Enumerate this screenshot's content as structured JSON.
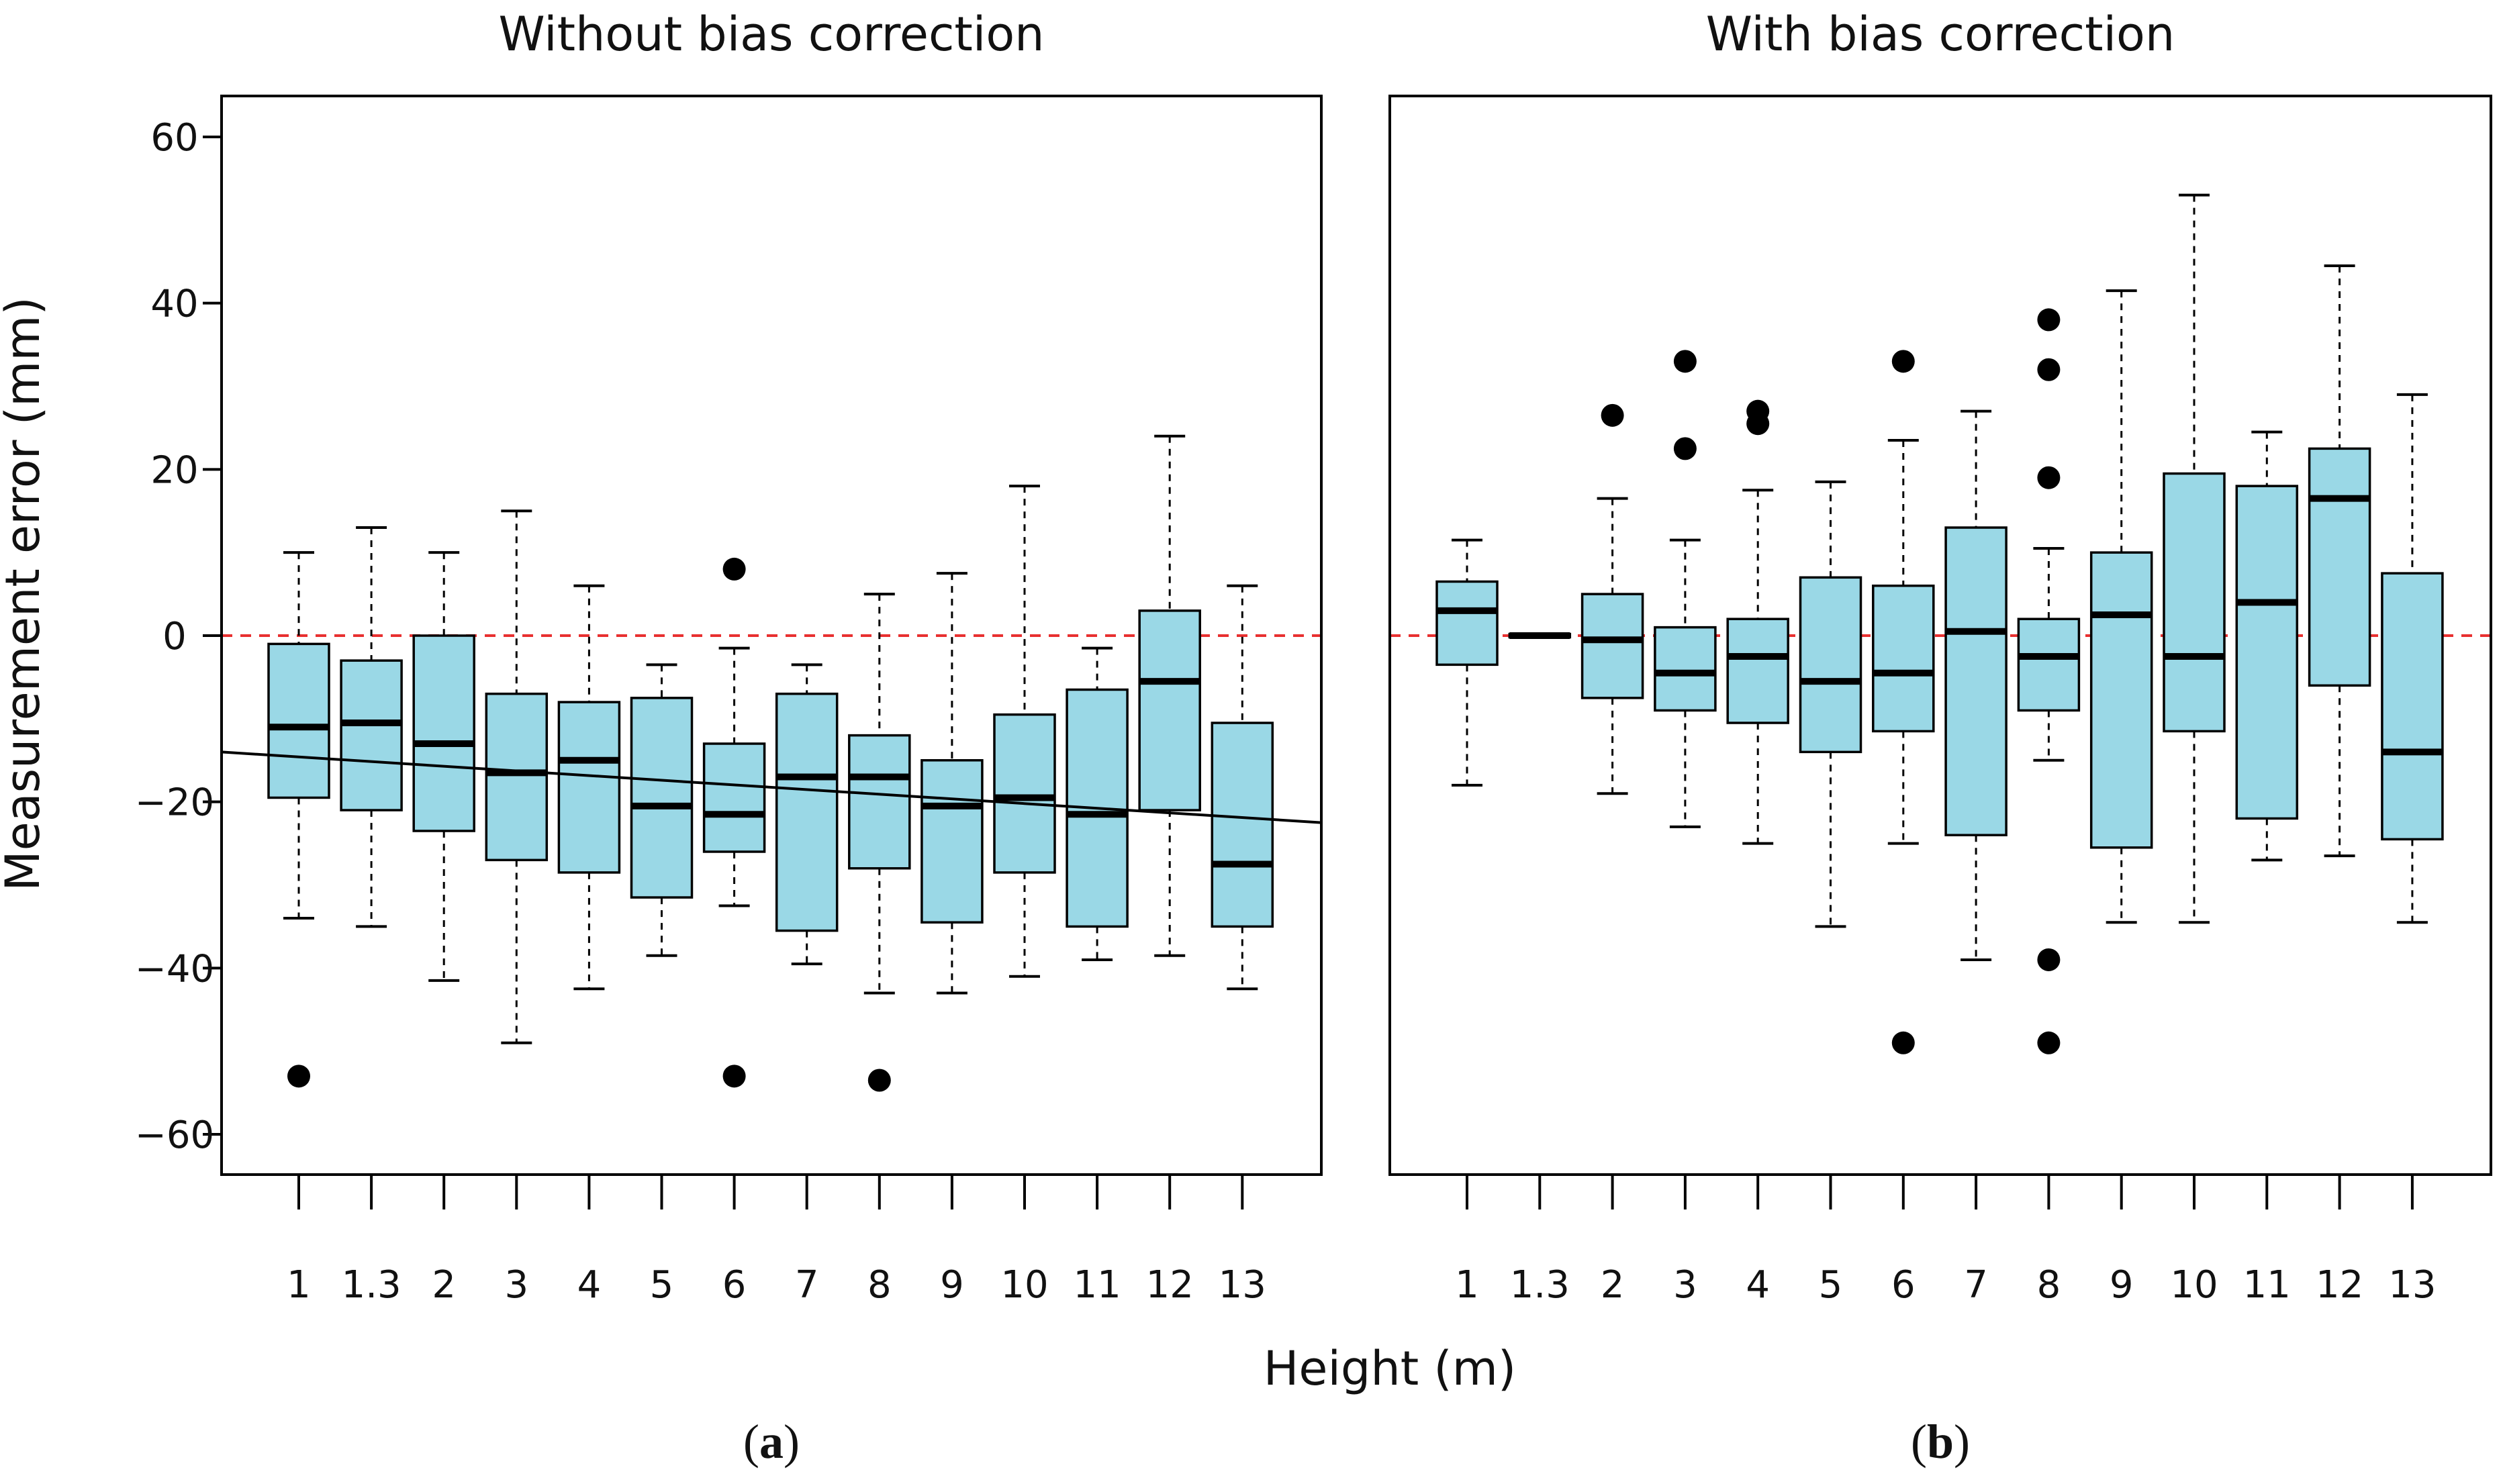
{
  "colors": {
    "box_fill": "#9ad8e6",
    "ref_line": "#e83030",
    "ink": "#000000"
  },
  "figure": {
    "shared_ylabel": "Measurement error (mm)",
    "shared_xlabel": "Height (m)"
  },
  "chart_data": [
    {
      "type": "boxplot",
      "panel_label": "(a)",
      "panel_letter": "a",
      "title": "Without bias correction",
      "xlabel": "Height (m)",
      "ylabel": "Measurement error (mm)",
      "ylim": [
        -65,
        65
      ],
      "yticks": [
        -60,
        -40,
        -20,
        0,
        20,
        40,
        60
      ],
      "categories": [
        "1",
        "1.3",
        "2",
        "3",
        "4",
        "5",
        "6",
        "7",
        "8",
        "9",
        "10",
        "11",
        "12",
        "13"
      ],
      "reference_line": 0,
      "trend_line": {
        "start": -14,
        "end": -22.5
      },
      "boxes": [
        {
          "q1": -19.5,
          "median": -11,
          "q3": -1,
          "wlo": -34,
          "whi": 10,
          "outliers": [
            -53
          ]
        },
        {
          "q1": -21,
          "median": -10.5,
          "q3": -3,
          "wlo": -35,
          "whi": 13,
          "outliers": []
        },
        {
          "q1": -23.5,
          "median": -13,
          "q3": 0,
          "wlo": -41.5,
          "whi": 10,
          "outliers": []
        },
        {
          "q1": -27,
          "median": -16.5,
          "q3": -7,
          "wlo": -49,
          "whi": 15,
          "outliers": []
        },
        {
          "q1": -28.5,
          "median": -15,
          "q3": -8,
          "wlo": -42.5,
          "whi": 6,
          "outliers": []
        },
        {
          "q1": -31.5,
          "median": -20.5,
          "q3": -7.5,
          "wlo": -38.5,
          "whi": -3.5,
          "outliers": []
        },
        {
          "q1": -26,
          "median": -21.5,
          "q3": -13,
          "wlo": -32.5,
          "whi": -1.5,
          "outliers": [
            8,
            -53
          ]
        },
        {
          "q1": -35.5,
          "median": -17,
          "q3": -7,
          "wlo": -39.5,
          "whi": -3.5,
          "outliers": []
        },
        {
          "q1": -28,
          "median": -17,
          "q3": -12,
          "wlo": -43,
          "whi": 5,
          "outliers": [
            -53.5
          ]
        },
        {
          "q1": -34.5,
          "median": -20.5,
          "q3": -15,
          "wlo": -43,
          "whi": 7.5,
          "outliers": []
        },
        {
          "q1": -28.5,
          "median": -19.5,
          "q3": -9.5,
          "wlo": -41,
          "whi": 18,
          "outliers": []
        },
        {
          "q1": -35,
          "median": -21.5,
          "q3": -6.5,
          "wlo": -39,
          "whi": -1.5,
          "outliers": []
        },
        {
          "q1": -21,
          "median": -5.5,
          "q3": 3,
          "wlo": -38.5,
          "whi": 24,
          "outliers": []
        },
        {
          "q1": -35,
          "median": -27.5,
          "q3": -10.5,
          "wlo": -42.5,
          "whi": 6,
          "outliers": []
        }
      ]
    },
    {
      "type": "boxplot",
      "panel_label": "(b)",
      "panel_letter": "b",
      "title": "With bias correction",
      "xlabel": "Height (m)",
      "ylabel": "Measurement error (mm)",
      "ylim": [
        -65,
        65
      ],
      "yticks": [],
      "categories": [
        "1",
        "1.3",
        "2",
        "3",
        "4",
        "5",
        "6",
        "7",
        "8",
        "9",
        "10",
        "11",
        "12",
        "13"
      ],
      "reference_line": 0,
      "boxes": [
        {
          "q1": -3.5,
          "median": 3,
          "q3": 6.5,
          "wlo": -18,
          "whi": 11.5,
          "outliers": []
        },
        {
          "q1": -0.2,
          "median": 0,
          "q3": 0.2,
          "wlo": -0.2,
          "whi": 0.2,
          "outliers": []
        },
        {
          "q1": -7.5,
          "median": -0.5,
          "q3": 5,
          "wlo": -19,
          "whi": 16.5,
          "outliers": [
            26.5
          ]
        },
        {
          "q1": -9,
          "median": -4.5,
          "q3": 1,
          "wlo": -23,
          "whi": 11.5,
          "outliers": [
            33,
            22.5
          ]
        },
        {
          "q1": -10.5,
          "median": -2.5,
          "q3": 2,
          "wlo": -25,
          "whi": 17.5,
          "outliers": [
            27,
            25.5
          ]
        },
        {
          "q1": -14,
          "median": -5.5,
          "q3": 7,
          "wlo": -35,
          "whi": 18.5,
          "outliers": []
        },
        {
          "q1": -11.5,
          "median": -4.5,
          "q3": 6,
          "wlo": -25,
          "whi": 23.5,
          "outliers": [
            33,
            -49
          ]
        },
        {
          "q1": -24,
          "median": 0.5,
          "q3": 13,
          "wlo": -39,
          "whi": 27,
          "outliers": []
        },
        {
          "q1": -9,
          "median": -2.5,
          "q3": 2,
          "wlo": -15,
          "whi": 10.5,
          "outliers": [
            38,
            32,
            19,
            -39,
            -49
          ]
        },
        {
          "q1": -25.5,
          "median": 2.5,
          "q3": 10,
          "wlo": -34.5,
          "whi": 41.5,
          "outliers": []
        },
        {
          "q1": -11.5,
          "median": -2.5,
          "q3": 19.5,
          "wlo": -34.5,
          "whi": 53,
          "outliers": []
        },
        {
          "q1": -22,
          "median": 4,
          "q3": 18,
          "wlo": -27,
          "whi": 24.5,
          "outliers": []
        },
        {
          "q1": -6,
          "median": 16.5,
          "q3": 22.5,
          "wlo": -26.5,
          "whi": 44.5,
          "outliers": []
        },
        {
          "q1": -24.5,
          "median": -14,
          "q3": 7.5,
          "wlo": -34.5,
          "whi": 29,
          "outliers": []
        }
      ]
    }
  ]
}
